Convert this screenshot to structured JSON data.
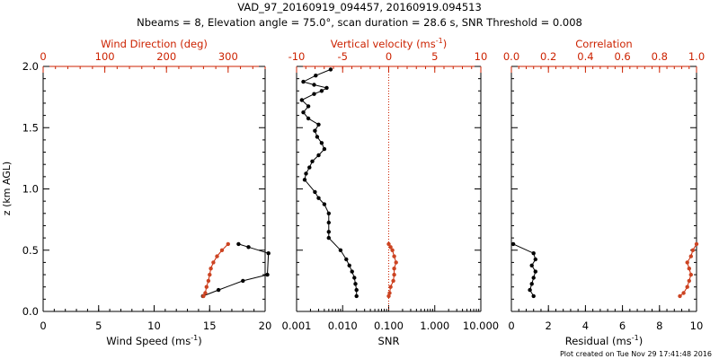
{
  "figure": {
    "title_line1": "VAD_97_20160919_094457, 20160919.094513",
    "title_line2": "Nbeams = 8, Elevation angle = 75.0°, scan duration = 28.6 s, SNR Threshold = 0.008",
    "footer": "Plot created on Tue Nov 29 17:41:48 2016",
    "ylabel": "z (km AGL)",
    "colors": {
      "primary": "#000000",
      "secondary": "#cc2200",
      "secondary_marker": "#cc4422"
    }
  },
  "chart_data": [
    {
      "type": "line",
      "name": "wind",
      "ylim": [
        0,
        2.0
      ],
      "yticks": [
        0.0,
        0.5,
        1.0,
        1.5,
        2.0
      ],
      "ytick_labels": [
        "0.0",
        "0.5",
        "1.0",
        "1.5",
        "2.0"
      ],
      "bottom_axis": {
        "label": "Wind Speed",
        "unit": "(ms",
        "unit_sup": "-1",
        "unit_close": ")",
        "lim": [
          0,
          20
        ],
        "ticks": [
          0,
          5,
          10,
          15,
          20
        ],
        "tick_labels": [
          "0",
          "5",
          "10",
          "15",
          "20"
        ]
      },
      "top_axis": {
        "label": "Wind Direction (deg)",
        "lim": [
          0,
          360
        ],
        "ticks": [
          0,
          100,
          200,
          300
        ],
        "tick_labels": [
          "0",
          "100",
          "200",
          "300"
        ]
      },
      "series": [
        {
          "axis": "bottom",
          "style": "black",
          "x": [
            14.4,
            15.8,
            18.0,
            20.2,
            20.3,
            18.5,
            17.6
          ],
          "y": [
            0.125,
            0.175,
            0.25,
            0.3,
            0.475,
            0.525,
            0.55
          ]
        },
        {
          "axis": "top",
          "style": "red",
          "x": [
            260,
            263,
            265,
            268,
            270,
            272,
            276,
            282,
            290,
            300
          ],
          "y": [
            0.125,
            0.15,
            0.2,
            0.25,
            0.3,
            0.35,
            0.4,
            0.45,
            0.5,
            0.55
          ]
        }
      ]
    },
    {
      "type": "line",
      "name": "vertical-velocity-snr",
      "ylim": [
        0,
        2.0
      ],
      "bottom_axis": {
        "label": "SNR",
        "scale": "log",
        "lim": [
          0.001,
          10
        ],
        "ticks": [
          0.001,
          0.01,
          0.1,
          1,
          10
        ],
        "tick_labels": [
          "0.001",
          "0.010",
          "0.100",
          "1.000",
          "10.000"
        ]
      },
      "top_axis": {
        "label": "Vertical velocity (ms",
        "label_sup": "-1",
        "label_close": ")",
        "lim": [
          -10,
          10
        ],
        "ticks": [
          -10,
          -5,
          0,
          5,
          10
        ],
        "tick_labels": [
          "-10",
          "-5",
          "0",
          "5",
          "10"
        ],
        "zero_line": true
      },
      "series": [
        {
          "axis": "bottom",
          "style": "black",
          "x": [
            0.02,
            0.02,
            0.019,
            0.018,
            0.016,
            0.014,
            0.012,
            0.009,
            0.005,
            0.005,
            0.005,
            0.005,
            0.004,
            0.003,
            0.0025,
            0.0015,
            0.0016,
            0.0019,
            0.0022,
            0.003,
            0.004,
            0.0035,
            0.0028,
            0.0025,
            0.003,
            0.0018,
            0.0014,
            0.0018,
            0.0013,
            0.0024,
            0.0035,
            0.0045,
            0.0024,
            0.0014,
            0.0026,
            0.0055
          ],
          "y": [
            0.125,
            0.175,
            0.225,
            0.275,
            0.325,
            0.375,
            0.425,
            0.5,
            0.6,
            0.65,
            0.725,
            0.8,
            0.875,
            0.925,
            0.975,
            1.075,
            1.125,
            1.175,
            1.225,
            1.275,
            1.325,
            1.375,
            1.425,
            1.475,
            1.525,
            1.575,
            1.625,
            1.675,
            1.725,
            1.775,
            1.8,
            1.825,
            1.85,
            1.875,
            1.925,
            1.975
          ]
        },
        {
          "axis": "top",
          "style": "red",
          "x": [
            0.0,
            0.1,
            0.2,
            0.5,
            0.6,
            0.6,
            0.8,
            0.6,
            0.4,
            0.2,
            0.0
          ],
          "y": [
            0.125,
            0.15,
            0.2,
            0.25,
            0.3,
            0.35,
            0.4,
            0.45,
            0.5,
            0.525,
            0.55
          ]
        }
      ]
    },
    {
      "type": "line",
      "name": "residual-correlation",
      "ylim": [
        0,
        2.0
      ],
      "bottom_axis": {
        "label": "Residual",
        "unit": "(ms",
        "unit_sup": "-1",
        "unit_close": ")",
        "lim": [
          0,
          10
        ],
        "ticks": [
          0,
          2,
          4,
          6,
          8,
          10
        ],
        "tick_labels": [
          "0",
          "2",
          "4",
          "6",
          "8",
          "10"
        ]
      },
      "top_axis": {
        "label": "Correlation",
        "lim": [
          0,
          1.0
        ],
        "ticks": [
          0,
          0.2,
          0.4,
          0.6,
          0.8,
          1.0
        ],
        "tick_labels": [
          "0.0",
          "0.2",
          "0.4",
          "0.6",
          "0.8",
          "1.0"
        ]
      },
      "series": [
        {
          "axis": "bottom",
          "style": "black",
          "x": [
            1.2,
            1.0,
            1.1,
            1.2,
            1.3,
            1.1,
            1.3,
            1.2,
            0.1
          ],
          "y": [
            0.125,
            0.175,
            0.225,
            0.275,
            0.325,
            0.375,
            0.425,
            0.475,
            0.55
          ]
        },
        {
          "axis": "top",
          "style": "red",
          "x": [
            0.91,
            0.93,
            0.95,
            0.96,
            0.97,
            0.96,
            0.95,
            0.97,
            0.98,
            1.0
          ],
          "y": [
            0.125,
            0.15,
            0.2,
            0.25,
            0.3,
            0.35,
            0.4,
            0.45,
            0.5,
            0.55
          ]
        }
      ]
    }
  ]
}
